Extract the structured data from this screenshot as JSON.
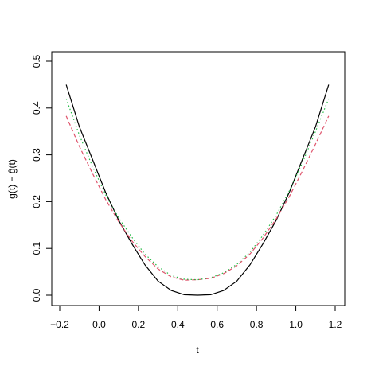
{
  "chart_data": {
    "type": "line",
    "title": "",
    "xlabel": "t",
    "ylabel": "g(t) − ĝ(t)",
    "xlim": [
      -0.2,
      1.2
    ],
    "ylim": [
      0.0,
      0.5
    ],
    "xticks": [
      -0.2,
      0.0,
      0.2,
      0.4,
      0.6,
      0.8,
      1.0,
      1.2
    ],
    "xtick_labels": [
      "−0.2",
      "0.0",
      "0.2",
      "0.4",
      "0.6",
      "0.8",
      "1.0",
      "1.2"
    ],
    "yticks": [
      0.0,
      0.1,
      0.2,
      0.3,
      0.4,
      0.5
    ],
    "ytick_labels": [
      "0.0",
      "0.1",
      "0.2",
      "0.3",
      "0.4",
      "0.5"
    ],
    "grid": false,
    "legend": "none",
    "series": [
      {
        "color": "#000000",
        "dash": "solid",
        "x": [
          -0.167,
          -0.1,
          -0.033,
          0.033,
          0.1,
          0.167,
          0.233,
          0.3,
          0.367,
          0.433,
          0.5,
          0.567,
          0.633,
          0.7,
          0.767,
          0.833,
          0.9,
          0.967,
          1.033,
          1.1,
          1.167
        ],
        "y": [
          0.45,
          0.36,
          0.29,
          0.22,
          0.16,
          0.11,
          0.065,
          0.03,
          0.01,
          0.001,
          0.0,
          0.001,
          0.01,
          0.03,
          0.065,
          0.11,
          0.16,
          0.22,
          0.29,
          0.36,
          0.45
        ]
      },
      {
        "color": "#df536b",
        "dash": "dashed",
        "x": [
          -0.167,
          -0.1,
          -0.033,
          0.033,
          0.1,
          0.167,
          0.233,
          0.3,
          0.367,
          0.433,
          0.5,
          0.567,
          0.633,
          0.7,
          0.767,
          0.833,
          0.9,
          0.967,
          1.033,
          1.1,
          1.167
        ],
        "y": [
          0.383,
          0.318,
          0.26,
          0.205,
          0.157,
          0.116,
          0.083,
          0.056,
          0.039,
          0.032,
          0.033,
          0.036,
          0.046,
          0.063,
          0.088,
          0.122,
          0.163,
          0.211,
          0.265,
          0.323,
          0.383
        ]
      },
      {
        "color": "#22bb44",
        "dash": "dotted",
        "x": [
          -0.167,
          -0.1,
          -0.033,
          0.033,
          0.1,
          0.167,
          0.233,
          0.3,
          0.367,
          0.433,
          0.5,
          0.567,
          0.633,
          0.7,
          0.767,
          0.833,
          0.9,
          0.967,
          1.033,
          1.1,
          1.167
        ],
        "y": [
          0.42,
          0.342,
          0.275,
          0.215,
          0.165,
          0.124,
          0.088,
          0.061,
          0.042,
          0.034,
          0.033,
          0.037,
          0.048,
          0.066,
          0.092,
          0.128,
          0.171,
          0.223,
          0.283,
          0.35,
          0.42
        ]
      }
    ]
  }
}
